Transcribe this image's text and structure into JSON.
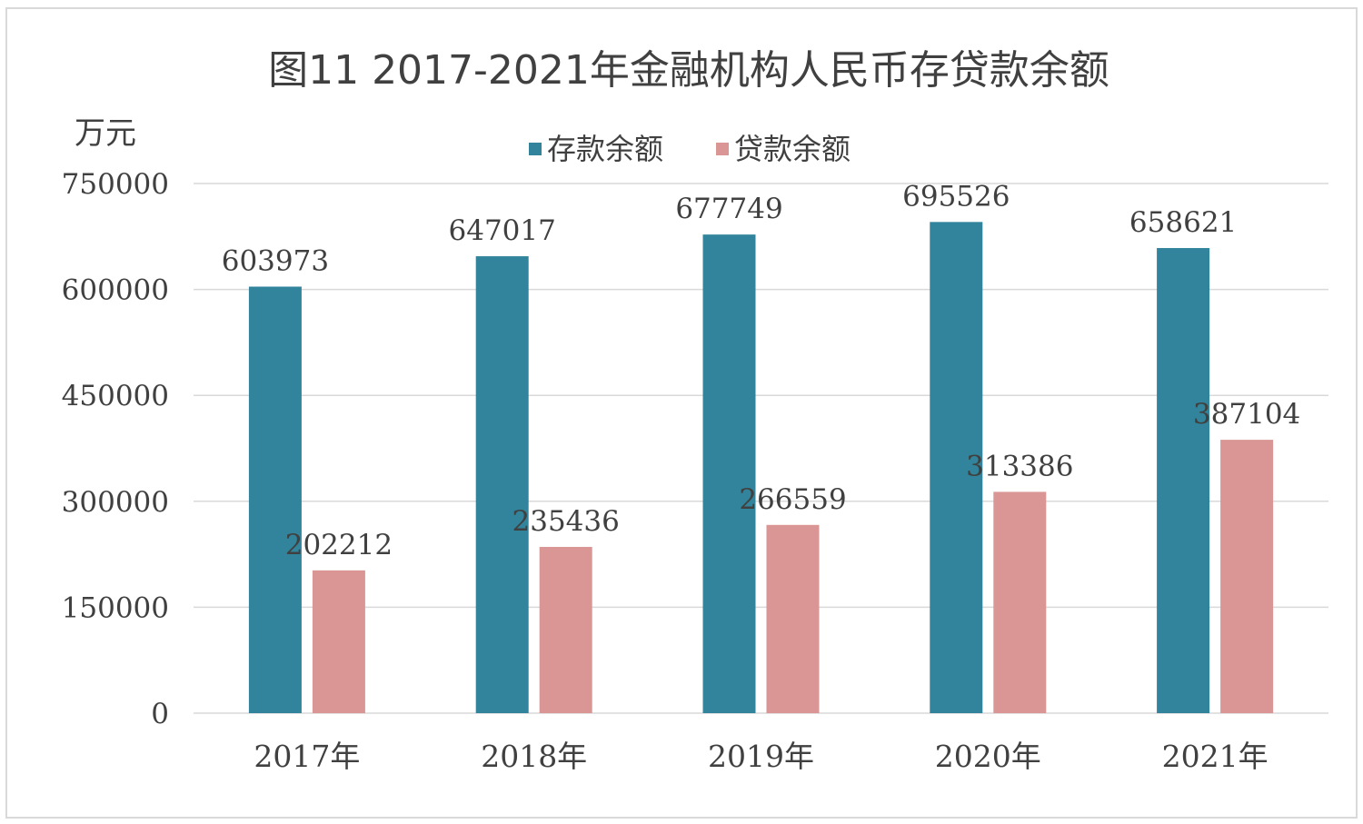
{
  "chart_data": {
    "type": "bar",
    "title": "图11  2017-2021年金融机构人民币存贷款余额",
    "ylabel": "万元",
    "xlabel": "",
    "categories": [
      "2017年",
      "2018年",
      "2019年",
      "2020年",
      "2021年"
    ],
    "series": [
      {
        "name": "存款余额",
        "color": "#31849b",
        "values": [
          603973,
          647017,
          677749,
          695526,
          658621
        ]
      },
      {
        "name": "贷款余额",
        "color": "#d99694",
        "values": [
          202212,
          235436,
          266559,
          313386,
          387104
        ]
      }
    ],
    "ylim": [
      0,
      750000
    ],
    "yticks": [
      0,
      150000,
      300000,
      450000,
      600000,
      750000
    ],
    "grid": true,
    "legend_position": "top",
    "data_labels": true
  }
}
